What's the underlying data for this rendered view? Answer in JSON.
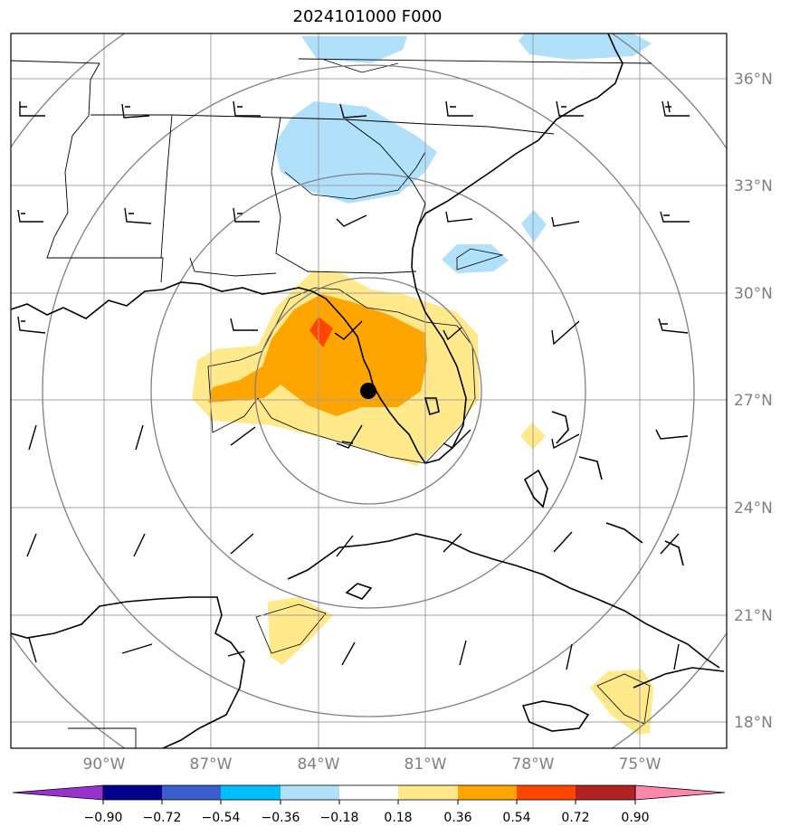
{
  "title": "2024101000 F000",
  "lat_labels": [
    "36°N",
    "33°N",
    "30°N",
    "27°N",
    "24°N",
    "21°N",
    "18°N"
  ],
  "lon_labels": [
    "90°W",
    "87°W",
    "84°W",
    "81°W",
    "78°W",
    "75°W"
  ],
  "colorbar": {
    "ticks": [
      "−0.90",
      "−0.72",
      "−0.54",
      "−0.36",
      "−0.18",
      "0.18",
      "0.36",
      "0.54",
      "0.72",
      "0.90"
    ],
    "colors": [
      "#9932cc",
      "#00008b",
      "#3a5fcd",
      "#00bfff",
      "#b0e0fa",
      "#ffffff",
      "#ffe98a",
      "#ffa500",
      "#ff4500",
      "#b22222",
      "#ff88aa"
    ]
  },
  "storm_center_marker": "filled-black-circle",
  "colors": {
    "light_blue": "#b0e0fa",
    "light_yellow": "#ffe98a",
    "orange": "#ffa500",
    "red_orange": "#ff4500",
    "grid": "#a0a0a0",
    "range_rings": "#808080"
  }
}
